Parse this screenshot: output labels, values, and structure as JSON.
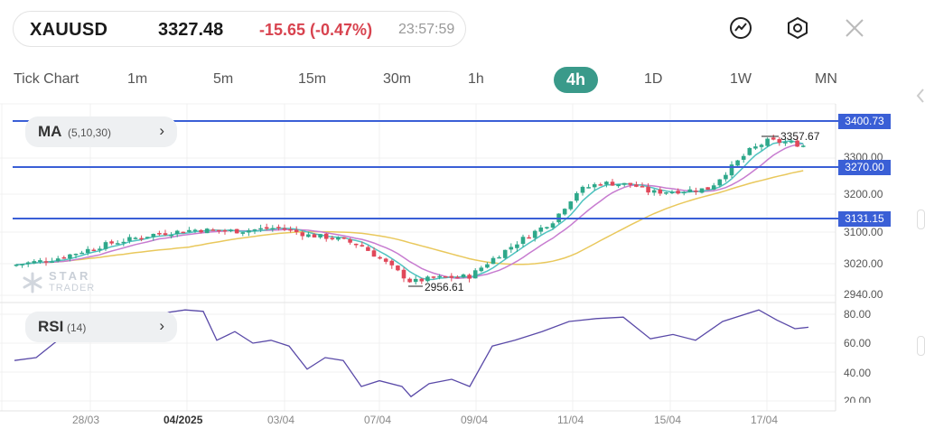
{
  "header": {
    "symbol": "XAUUSD",
    "price": "3327.48",
    "change": "-15.65 (-0.47%)",
    "time": "23:57:59",
    "change_color": "#d8434f"
  },
  "toolbar": {
    "icons": [
      "chart-line-icon",
      "hexagon-settings-icon",
      "close-icon"
    ]
  },
  "timeframes": [
    {
      "label": "Tick Chart"
    },
    {
      "label": "1m"
    },
    {
      "label": "5m"
    },
    {
      "label": "15m"
    },
    {
      "label": "30m"
    },
    {
      "label": "1h"
    },
    {
      "label": "4h",
      "active": true
    },
    {
      "label": "1D"
    },
    {
      "label": "1W"
    },
    {
      "label": "MN"
    }
  ],
  "indicators": {
    "ma": {
      "name": "MA",
      "params": "(5,10,30)",
      "chevron": "›"
    },
    "rsi": {
      "name": "RSI",
      "params": "(14)",
      "chevron": "›"
    }
  },
  "watermark": {
    "line1": "STAR",
    "line2": "TRADER"
  },
  "levels": [
    {
      "label": "3400.73",
      "color": "#3a5fd6"
    },
    {
      "label": "3270.00",
      "color": "#3a5fd6"
    },
    {
      "label": "3131.15",
      "color": "#3a5fd6"
    }
  ],
  "y_axis_price": [
    "3300.00",
    "3200.00",
    "3100.00",
    "3020.00",
    "2940.00"
  ],
  "y_axis_rsi": [
    "80.00",
    "60.00",
    "40.00",
    "20.00"
  ],
  "x_axis": [
    "28/03",
    "04/2025",
    "03/04",
    "07/04",
    "09/04",
    "11/04",
    "15/04",
    "17/04"
  ],
  "annotations": {
    "high": "3357.67",
    "low": "2956.61"
  },
  "colors": {
    "up": "#2ea88a",
    "down": "#e0485a",
    "ma5": "#4fc3c0",
    "ma10": "#c77cd0",
    "ma30": "#e9c85c",
    "rsi": "#5a4aa8",
    "accent": "#3a9a8a"
  }
}
